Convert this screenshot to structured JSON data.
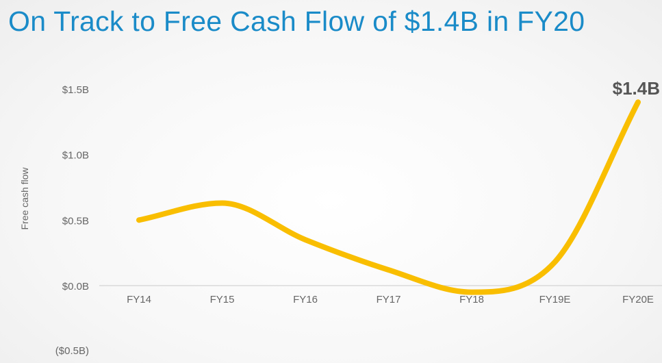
{
  "page": {
    "title": "On Track to Free Cash Flow of $1.4B in FY20"
  },
  "chart_data": {
    "type": "line",
    "title": "On Track to Free Cash Flow of $1.4B in FY20",
    "xlabel": "",
    "ylabel": "Free cash flow",
    "categories": [
      "FY14",
      "FY15",
      "FY16",
      "FY17",
      "FY18",
      "FY19E",
      "FY20E"
    ],
    "series": [
      {
        "values": [
          0.5,
          0.63,
          0.35,
          0.12,
          -0.05,
          0.18,
          1.4
        ],
        "color": "#f9be00"
      }
    ],
    "yticks": [
      {
        "value": 1.5,
        "label": "$1.5B"
      },
      {
        "value": 1.0,
        "label": "$1.0B"
      },
      {
        "value": 0.5,
        "label": "$0.5B"
      },
      {
        "value": 0.0,
        "label": "$0.0B"
      },
      {
        "value": -0.5,
        "label": "($0.5B)"
      }
    ],
    "ylim": [
      -0.5,
      1.5
    ],
    "annotations": [
      {
        "category": "FY20E",
        "label": "$1.4B"
      }
    ],
    "grid": false,
    "legend": "none",
    "axis_color": "#d9d9d9"
  }
}
